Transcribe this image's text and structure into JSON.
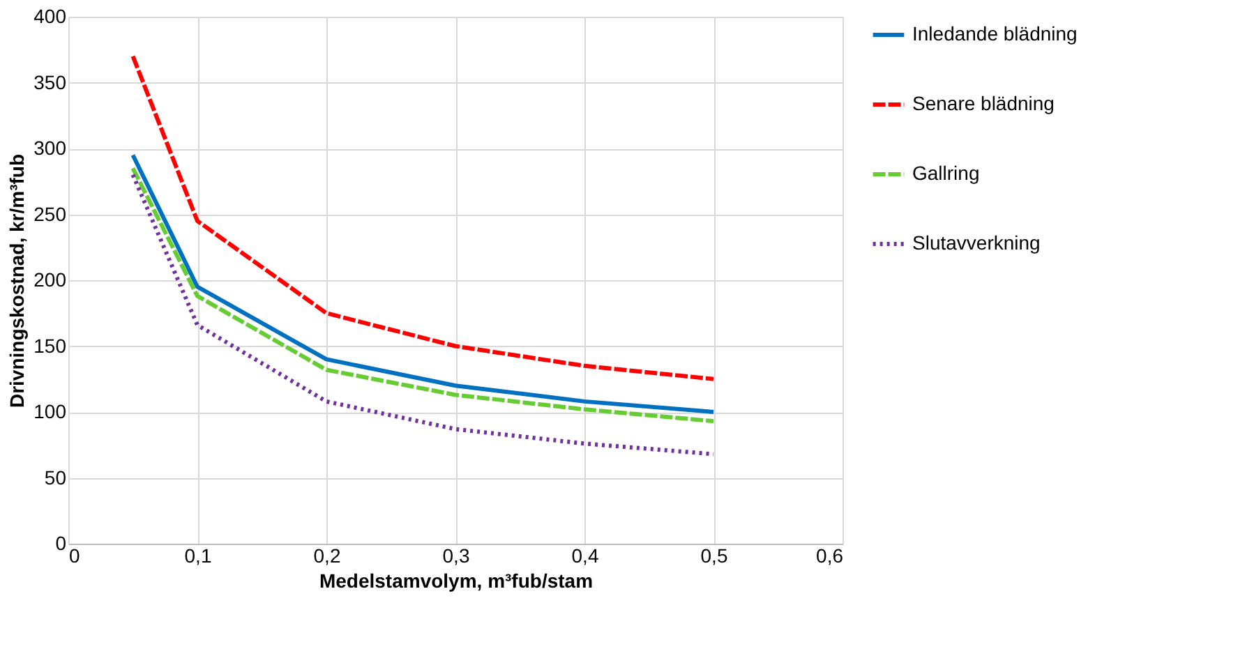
{
  "chart_data": {
    "type": "line",
    "xlabel": "Medelstamvolym, m³fub/stam",
    "ylabel": "Drivningskostnad, kr/m³fub",
    "x": [
      0.05,
      0.1,
      0.2,
      0.3,
      0.4,
      0.5
    ],
    "series": [
      {
        "name": "Inledande blädning",
        "color": "#0070c0",
        "line_style": "solid",
        "values": [
          295,
          195,
          140,
          120,
          108,
          100
        ]
      },
      {
        "name": "Senare blädning",
        "color": "#ff0000",
        "line_style": "dashed",
        "values": [
          370,
          245,
          175,
          150,
          135,
          125
        ]
      },
      {
        "name": "Gallring",
        "color": "#66cc33",
        "line_style": "dashed",
        "values": [
          285,
          188,
          132,
          113,
          102,
          93
        ]
      },
      {
        "name": "Slutavverkning",
        "color": "#7030a0",
        "line_style": "dotted",
        "values": [
          280,
          166,
          108,
          87,
          76,
          68
        ]
      }
    ],
    "xlim": [
      0,
      0.6
    ],
    "xticks": [
      0,
      {
        "value": 0.1,
        "label": "0,1"
      },
      {
        "value": 0.2,
        "label": "0,2"
      },
      {
        "value": 0.3,
        "label": "0,3"
      },
      {
        "value": 0.4,
        "label": "0,4"
      },
      {
        "value": 0.5,
        "label": "0,5"
      },
      {
        "value": 0.6,
        "label": "0,6"
      }
    ],
    "ylim": [
      0,
      400
    ],
    "yticks": [
      0,
      50,
      100,
      150,
      200,
      250,
      300,
      350,
      400
    ],
    "grid": true,
    "legend": "right",
    "marker": "none"
  }
}
